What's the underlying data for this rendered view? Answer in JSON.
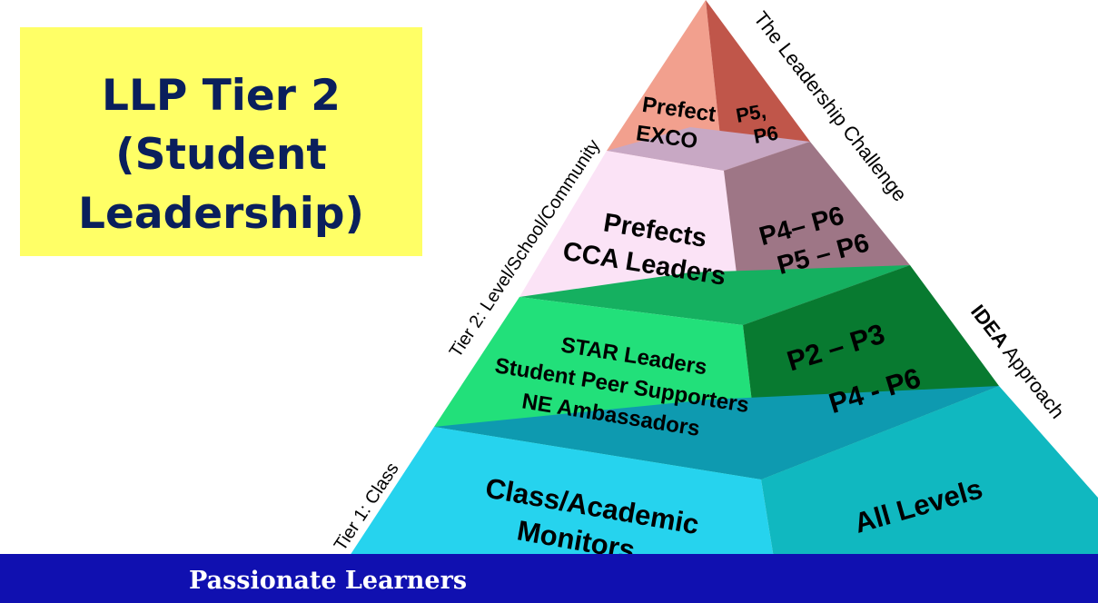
{
  "title": {
    "line1": "LLP Tier 2",
    "line2": "(Student",
    "line3": "Leadership)"
  },
  "footer": {
    "text": "Passionate Learners"
  },
  "side_labels": {
    "left_top": "Tier 2: Level/School/Community",
    "left_bottom": "Tier 1: Class",
    "right_top": "The Leadership Challenge",
    "right_bold": "IDEA",
    "right_rest": " Approach"
  },
  "tiers": [
    {
      "front": [
        "Prefect",
        "EXCO"
      ],
      "side": [
        "P5,",
        "P6"
      ]
    },
    {
      "front": [
        "Prefects",
        "CCA Leaders"
      ],
      "side": [
        "P4– P6",
        "P5 – P6"
      ]
    },
    {
      "front": [
        "STAR Leaders",
        "Student Peer Supporters",
        "NE Ambassadors"
      ],
      "side": [
        "P2 – P3",
        "P4 - P6"
      ]
    },
    {
      "front": [
        "Class/Academic",
        "Monitors"
      ],
      "side": [
        "All Levels"
      ]
    }
  ],
  "colors": {
    "title_bg": "#ffff66",
    "title_text": "#0a1f5c",
    "footer_bg": "#1010b0",
    "tier1_front": "#f2a08e",
    "tier1_side": "#c0564a",
    "tier2_front": "#fbe3f6",
    "tier2_side": "#9e7686",
    "tier3_front": "#22e07a",
    "tier3_side": "#087a30",
    "tier4_front": "#26d3ee",
    "tier4_side": "#10b8c0"
  }
}
